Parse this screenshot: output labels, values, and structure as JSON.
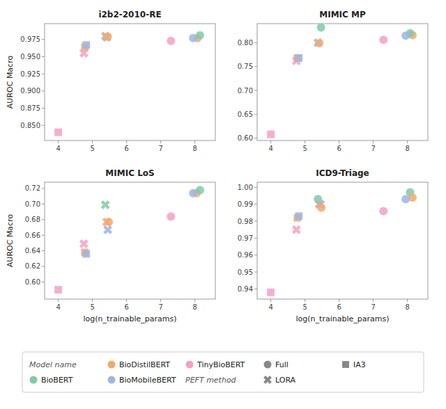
{
  "chart_data": [
    {
      "type": "scatter",
      "title": "i2b2-2010-RE",
      "ylabel": "AUROC Macro",
      "grid": false,
      "xlim": [
        3.6,
        8.6
      ],
      "xticks": [
        4,
        5,
        6,
        7,
        8
      ],
      "ylim": [
        0.828,
        0.998
      ],
      "yticks": [
        {
          "value": 0.85,
          "label": "0.850"
        },
        0.875,
        {
          "value": 0.9,
          "label": "0.900"
        },
        0.925,
        {
          "value": 0.95,
          "label": "0.950"
        },
        0.975
      ],
      "series": [
        {
          "name": "TinyBioBERT",
          "color": "#F5A0C5",
          "marker": "square",
          "x": [
            4.0
          ],
          "values": [
            0.84
          ]
        },
        {
          "name": "TinyBioBERT",
          "color": "#F5A0C5",
          "marker": "x",
          "x": [
            4.75
          ],
          "values": [
            0.955
          ]
        },
        {
          "name": "BioDistilBERT",
          "color": "#F4A96A",
          "marker": "square",
          "x": [
            4.78
          ],
          "values": [
            0.964
          ]
        },
        {
          "name": "BioMobileBERT",
          "color": "#9BB5E8",
          "marker": "square",
          "x": [
            4.82
          ],
          "values": [
            0.967
          ]
        },
        {
          "name": "BioDistilBERT",
          "color": "#F4A96A",
          "marker": "x",
          "x": [
            5.38
          ],
          "values": [
            0.98
          ]
        },
        {
          "name": "BioMobileBERT",
          "color": "#9BB5E8",
          "marker": "x",
          "x": [
            5.42
          ],
          "values": [
            0.978
          ]
        },
        {
          "name": "BioDistilBERT",
          "color": "#F4A96A",
          "marker": "circle",
          "x": [
            5.45,
            8.08
          ],
          "values": [
            0.979,
            0.977
          ]
        },
        {
          "name": "TinyBioBERT",
          "color": "#F5A0C5",
          "marker": "circle",
          "x": [
            7.3
          ],
          "values": [
            0.973
          ]
        },
        {
          "name": "BioMobileBERT",
          "color": "#9BB5E8",
          "marker": "circle",
          "x": [
            7.95
          ],
          "values": [
            0.977
          ]
        },
        {
          "name": "BioBERT",
          "color": "#7ECBA6",
          "marker": "circle",
          "x": [
            8.15
          ],
          "values": [
            0.981
          ]
        }
      ]
    },
    {
      "type": "scatter",
      "title": "MIMIC MP",
      "grid": false,
      "xlim": [
        3.6,
        8.6
      ],
      "xticks": [
        4,
        5,
        6,
        7,
        8
      ],
      "ylim": [
        0.595,
        0.84
      ],
      "yticks": [
        {
          "value": 0.6,
          "label": "0.60"
        },
        0.65,
        {
          "value": 0.7,
          "label": "0.70"
        },
        0.75,
        {
          "value": 0.8,
          "label": "0.80"
        }
      ],
      "series": [
        {
          "name": "TinyBioBERT",
          "color": "#F5A0C5",
          "marker": "square",
          "x": [
            4.0
          ],
          "values": [
            0.608
          ]
        },
        {
          "name": "TinyBioBERT",
          "color": "#F5A0C5",
          "marker": "x",
          "x": [
            4.75
          ],
          "values": [
            0.762
          ]
        },
        {
          "name": "BioDistilBERT",
          "color": "#F4A96A",
          "marker": "square",
          "x": [
            4.78
          ],
          "values": [
            0.768
          ]
        },
        {
          "name": "BioMobileBERT",
          "color": "#9BB5E8",
          "marker": "square",
          "x": [
            4.82
          ],
          "values": [
            0.768
          ]
        },
        {
          "name": "BioMobileBERT",
          "color": "#9BB5E8",
          "marker": "x",
          "x": [
            5.38
          ],
          "values": [
            0.8
          ]
        },
        {
          "name": "BioDistilBERT",
          "color": "#F4A96A",
          "marker": "circle",
          "x": [
            5.42,
            8.15
          ],
          "values": [
            0.799,
            0.816
          ]
        },
        {
          "name": "BioBERT",
          "color": "#7ECBA6",
          "marker": "circle",
          "x": [
            5.47,
            8.08
          ],
          "values": [
            0.832,
            0.82
          ]
        },
        {
          "name": "TinyBioBERT",
          "color": "#F5A0C5",
          "marker": "circle",
          "x": [
            7.3
          ],
          "values": [
            0.806
          ]
        },
        {
          "name": "BioMobileBERT",
          "color": "#9BB5E8",
          "marker": "circle",
          "x": [
            7.95
          ],
          "values": [
            0.815
          ]
        }
      ]
    },
    {
      "type": "scatter",
      "title": "MIMIC LoS",
      "xlabel": "log(n_trainable_params)",
      "ylabel": "AUROC Macro",
      "grid": false,
      "xlim": [
        3.6,
        8.6
      ],
      "xticks": [
        4,
        5,
        6,
        7,
        8
      ],
      "ylim": [
        0.578,
        0.728
      ],
      "yticks": [
        {
          "value": 0.6,
          "label": "0.60"
        },
        0.62,
        0.64,
        0.66,
        0.68,
        {
          "value": 0.7,
          "label": "0.70"
        },
        0.72
      ],
      "series": [
        {
          "name": "TinyBioBERT",
          "color": "#F5A0C5",
          "marker": "square",
          "x": [
            4.0
          ],
          "values": [
            0.59
          ]
        },
        {
          "name": "TinyBioBERT",
          "color": "#F5A0C5",
          "marker": "x",
          "x": [
            4.75
          ],
          "values": [
            0.649
          ]
        },
        {
          "name": "BioDistilBERT",
          "color": "#F4A96A",
          "marker": "square",
          "x": [
            4.78
          ],
          "values": [
            0.638
          ]
        },
        {
          "name": "BioMobileBERT",
          "color": "#9BB5E8",
          "marker": "square",
          "x": [
            4.82
          ],
          "values": [
            0.636
          ]
        },
        {
          "name": "BioBERT",
          "color": "#7ECBA6",
          "marker": "x",
          "x": [
            5.38
          ],
          "values": [
            0.699
          ]
        },
        {
          "name": "BioDistilBERT",
          "color": "#F4A96A",
          "marker": "x",
          "x": [
            5.42
          ],
          "values": [
            0.677
          ]
        },
        {
          "name": "BioMobileBERT",
          "color": "#9BB5E8",
          "marker": "x",
          "x": [
            5.45
          ],
          "values": [
            0.667
          ]
        },
        {
          "name": "BioDistilBERT",
          "color": "#F4A96A",
          "marker": "circle",
          "x": [
            5.48,
            8.05
          ],
          "values": [
            0.677,
            0.714
          ]
        },
        {
          "name": "TinyBioBERT",
          "color": "#F5A0C5",
          "marker": "circle",
          "x": [
            7.3
          ],
          "values": [
            0.684
          ]
        },
        {
          "name": "BioMobileBERT",
          "color": "#9BB5E8",
          "marker": "circle",
          "x": [
            7.95
          ],
          "values": [
            0.714
          ]
        },
        {
          "name": "BioBERT",
          "color": "#7ECBA6",
          "marker": "circle",
          "x": [
            8.15
          ],
          "values": [
            0.718
          ]
        }
      ]
    },
    {
      "type": "scatter",
      "title": "ICD9-Triage",
      "xlabel": "log(n_trainable_params)",
      "grid": false,
      "xlim": [
        3.6,
        8.6
      ],
      "xticks": [
        4,
        5,
        6,
        7,
        8
      ],
      "ylim": [
        0.934,
        1.003
      ],
      "yticks": [
        0.94,
        0.95,
        0.96,
        0.97,
        0.98,
        0.99,
        {
          "value": 1.0,
          "label": "1.00"
        }
      ],
      "series": [
        {
          "name": "TinyBioBERT",
          "color": "#F5A0C5",
          "marker": "square",
          "x": [
            4.0
          ],
          "values": [
            0.938
          ]
        },
        {
          "name": "TinyBioBERT",
          "color": "#F5A0C5",
          "marker": "x",
          "x": [
            4.75
          ],
          "values": [
            0.975
          ]
        },
        {
          "name": "BioDistilBERT",
          "color": "#F4A96A",
          "marker": "square",
          "x": [
            4.78
          ],
          "values": [
            0.982
          ]
        },
        {
          "name": "BioMobileBERT",
          "color": "#9BB5E8",
          "marker": "square",
          "x": [
            4.82
          ],
          "values": [
            0.983
          ]
        },
        {
          "name": "BioBERT",
          "color": "#7ECBA6",
          "marker": "circle",
          "x": [
            5.38,
            8.08
          ],
          "values": [
            0.993,
            0.997
          ]
        },
        {
          "name": "BioDistilBERT",
          "color": "#F4A96A",
          "marker": "x",
          "x": [
            5.42
          ],
          "values": [
            0.99
          ]
        },
        {
          "name": "BioMobileBERT",
          "color": "#9BB5E8",
          "marker": "x",
          "x": [
            5.45
          ],
          "values": [
            0.99
          ]
        },
        {
          "name": "BioDistilBERT",
          "color": "#F4A96A",
          "marker": "circle",
          "x": [
            5.48,
            8.15
          ],
          "values": [
            0.988,
            0.994
          ]
        },
        {
          "name": "TinyBioBERT",
          "color": "#F5A0C5",
          "marker": "circle",
          "x": [
            7.3
          ],
          "values": [
            0.986
          ]
        },
        {
          "name": "BioMobileBERT",
          "color": "#9BB5E8",
          "marker": "circle",
          "x": [
            7.95
          ],
          "values": [
            0.993
          ]
        }
      ]
    }
  ],
  "legend_entries": [
    {
      "label": "Model name"
    },
    {
      "label": "BioDistilBERT",
      "color": "#F4A96A",
      "marker": "circle"
    },
    {
      "label": "TinyBioBERT",
      "color": "#F5A0C5",
      "marker": "circle"
    },
    {
      "label": "Full",
      "color": "#888888",
      "marker": "circle"
    },
    {
      "label": "IA3",
      "color": "#888888",
      "marker": "square"
    },
    {
      "label": "BioBERT",
      "color": "#7ECBA6",
      "marker": "circle"
    },
    {
      "label": "BioMobileBERT",
      "color": "#9BB5E8",
      "marker": "circle"
    },
    {
      "label": "PEFT method"
    },
    {
      "label": "LORA",
      "color": "#888888",
      "marker": "x"
    }
  ]
}
